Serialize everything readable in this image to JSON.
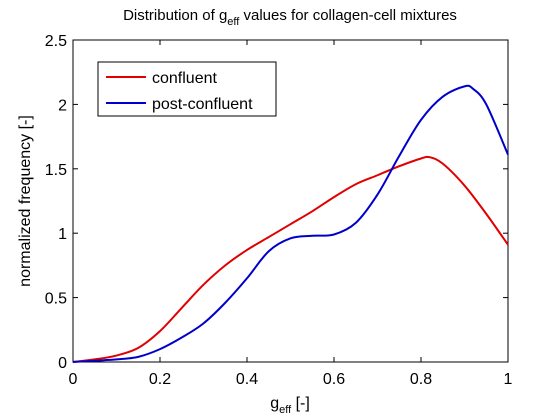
{
  "chart_data": {
    "type": "line",
    "title": {
      "main": "Distribution of g",
      "sub": "eff",
      "rest": " values for collagen-cell mixtures"
    },
    "xlabel": {
      "main": "g",
      "sub": "eff",
      "rest": " [-]"
    },
    "ylabel": "normalized frequency [-]",
    "xlim": [
      0,
      1
    ],
    "ylim": [
      0,
      2.5
    ],
    "xticks": [
      0,
      0.2,
      0.4,
      0.6,
      0.8,
      1
    ],
    "xtick_labels": [
      "0",
      "0.2",
      "0.4",
      "0.6",
      "0.8",
      "1"
    ],
    "yticks": [
      0,
      0.5,
      1,
      1.5,
      2,
      2.5
    ],
    "ytick_labels": [
      "0",
      "0.5",
      "1",
      "1.5",
      "2",
      "2.5"
    ],
    "grid": false,
    "legend_position": "top-left",
    "series": [
      {
        "name": "confluent",
        "color": "#e00000",
        "x": [
          0.0,
          0.05,
          0.1,
          0.15,
          0.2,
          0.25,
          0.3,
          0.35,
          0.4,
          0.45,
          0.5,
          0.55,
          0.6,
          0.65,
          0.7,
          0.75,
          0.8,
          0.82,
          0.85,
          0.9,
          0.95,
          1.0
        ],
        "y": [
          0.0,
          0.02,
          0.05,
          0.11,
          0.24,
          0.42,
          0.6,
          0.75,
          0.87,
          0.97,
          1.07,
          1.17,
          1.28,
          1.38,
          1.45,
          1.52,
          1.58,
          1.59,
          1.54,
          1.37,
          1.15,
          0.91
        ]
      },
      {
        "name": "post-confluent",
        "color": "#0000cc",
        "x": [
          0.0,
          0.05,
          0.1,
          0.15,
          0.2,
          0.25,
          0.3,
          0.35,
          0.4,
          0.45,
          0.5,
          0.55,
          0.6,
          0.65,
          0.7,
          0.75,
          0.8,
          0.85,
          0.9,
          0.92,
          0.95,
          1.0
        ],
        "y": [
          0.0,
          0.01,
          0.02,
          0.04,
          0.1,
          0.19,
          0.3,
          0.46,
          0.65,
          0.86,
          0.96,
          0.98,
          0.99,
          1.08,
          1.3,
          1.6,
          1.88,
          2.06,
          2.14,
          2.12,
          2.0,
          1.61
        ]
      }
    ]
  }
}
